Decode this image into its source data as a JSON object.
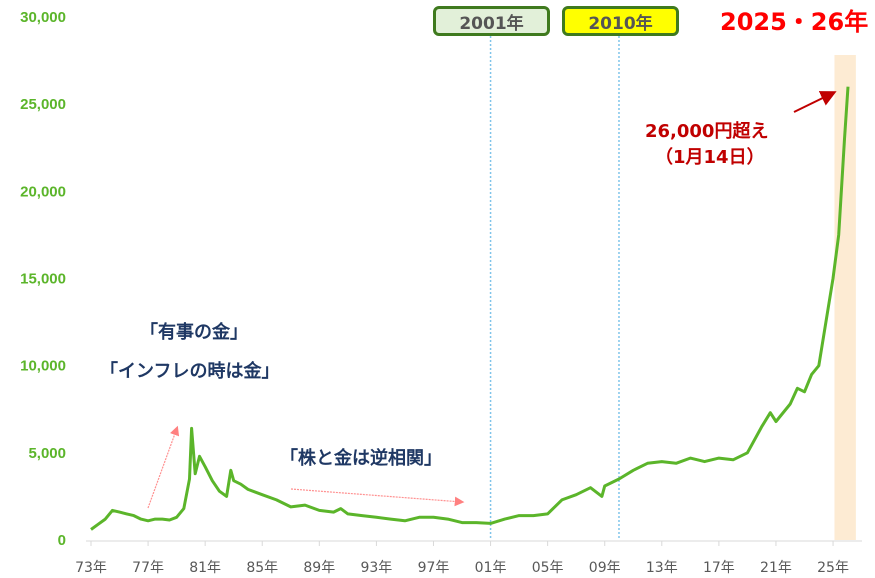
{
  "chart_data": {
    "type": "line",
    "title": "2025・26年",
    "xlabel": "",
    "ylabel": "",
    "ylim": [
      0,
      30000
    ],
    "xlim": [
      1972.9,
      2026.9
    ],
    "grid": false,
    "y_ticks": [
      0,
      5000,
      10000,
      15000,
      20000,
      25000,
      30000
    ],
    "y_tick_labels": [
      "0",
      "5,000",
      "10,000",
      "15,000",
      "20,000",
      "25,000",
      "30,000"
    ],
    "x_tick_years": [
      1973,
      1977,
      1981,
      1985,
      1989,
      1993,
      1997,
      2001,
      2005,
      2009,
      2013,
      2017,
      2021,
      2025
    ],
    "x_tick_labels": [
      "73年",
      "77年",
      "81年",
      "85年",
      "89年",
      "93年",
      "97年",
      "01年",
      "05年",
      "09年",
      "13年",
      "17年",
      "21年",
      "25年"
    ],
    "series": [
      {
        "color": "#5bb52a",
        "points": [
          [
            1973.0,
            600
          ],
          [
            1973.5,
            900
          ],
          [
            1974.0,
            1200
          ],
          [
            1974.5,
            1700
          ],
          [
            1975.0,
            1600
          ],
          [
            1975.5,
            1500
          ],
          [
            1976.0,
            1400
          ],
          [
            1976.5,
            1200
          ],
          [
            1977.0,
            1100
          ],
          [
            1977.5,
            1200
          ],
          [
            1978.0,
            1200
          ],
          [
            1978.5,
            1150
          ],
          [
            1979.0,
            1300
          ],
          [
            1979.5,
            1800
          ],
          [
            1979.9,
            3500
          ],
          [
            1980.05,
            6400
          ],
          [
            1980.3,
            3800
          ],
          [
            1980.6,
            4800
          ],
          [
            1981.0,
            4200
          ],
          [
            1981.5,
            3400
          ],
          [
            1982.0,
            2800
          ],
          [
            1982.5,
            2500
          ],
          [
            1982.8,
            4000
          ],
          [
            1983.0,
            3400
          ],
          [
            1983.5,
            3200
          ],
          [
            1984.0,
            2900
          ],
          [
            1985.0,
            2600
          ],
          [
            1986.0,
            2300
          ],
          [
            1987.0,
            1900
          ],
          [
            1988.0,
            2000
          ],
          [
            1989.0,
            1700
          ],
          [
            1990.0,
            1600
          ],
          [
            1990.5,
            1800
          ],
          [
            1991.0,
            1500
          ],
          [
            1992.0,
            1400
          ],
          [
            1993.0,
            1300
          ],
          [
            1994.0,
            1200
          ],
          [
            1995.0,
            1100
          ],
          [
            1996.0,
            1300
          ],
          [
            1997.0,
            1300
          ],
          [
            1998.0,
            1200
          ],
          [
            1999.0,
            1000
          ],
          [
            2000.0,
            1000
          ],
          [
            2001.0,
            950
          ],
          [
            2002.0,
            1200
          ],
          [
            2003.0,
            1400
          ],
          [
            2004.0,
            1400
          ],
          [
            2005.0,
            1500
          ],
          [
            2006.0,
            2300
          ],
          [
            2007.0,
            2600
          ],
          [
            2008.0,
            3000
          ],
          [
            2008.8,
            2500
          ],
          [
            2009.0,
            3100
          ],
          [
            2010.0,
            3500
          ],
          [
            2011.0,
            4000
          ],
          [
            2012.0,
            4400
          ],
          [
            2013.0,
            4500
          ],
          [
            2014.0,
            4400
          ],
          [
            2015.0,
            4700
          ],
          [
            2016.0,
            4500
          ],
          [
            2017.0,
            4700
          ],
          [
            2018.0,
            4600
          ],
          [
            2019.0,
            5000
          ],
          [
            2020.0,
            6500
          ],
          [
            2020.6,
            7300
          ],
          [
            2021.0,
            6800
          ],
          [
            2022.0,
            7800
          ],
          [
            2022.5,
            8700
          ],
          [
            2023.0,
            8500
          ],
          [
            2023.5,
            9500
          ],
          [
            2024.0,
            10000
          ],
          [
            2024.5,
            12500
          ],
          [
            2025.0,
            15000
          ],
          [
            2025.4,
            17500
          ],
          [
            2025.8,
            23000
          ],
          [
            2026.05,
            26000
          ]
        ]
      }
    ],
    "vlines": [
      {
        "year": 2001,
        "label": "2001年",
        "fill": "#e2f0d9"
      },
      {
        "year": 2010,
        "label": "2010年",
        "fill": "#ffff00"
      }
    ],
    "highlight": {
      "from": 2025.1,
      "to": 2026.6,
      "color": "#fdebd3"
    },
    "annotations": {
      "peak": "26,000円超え",
      "date": "（1月14日）",
      "crisis": "「有事の金」",
      "inflation": "「インフレの時は金」",
      "inverse": "「株と金は逆相関」"
    }
  }
}
